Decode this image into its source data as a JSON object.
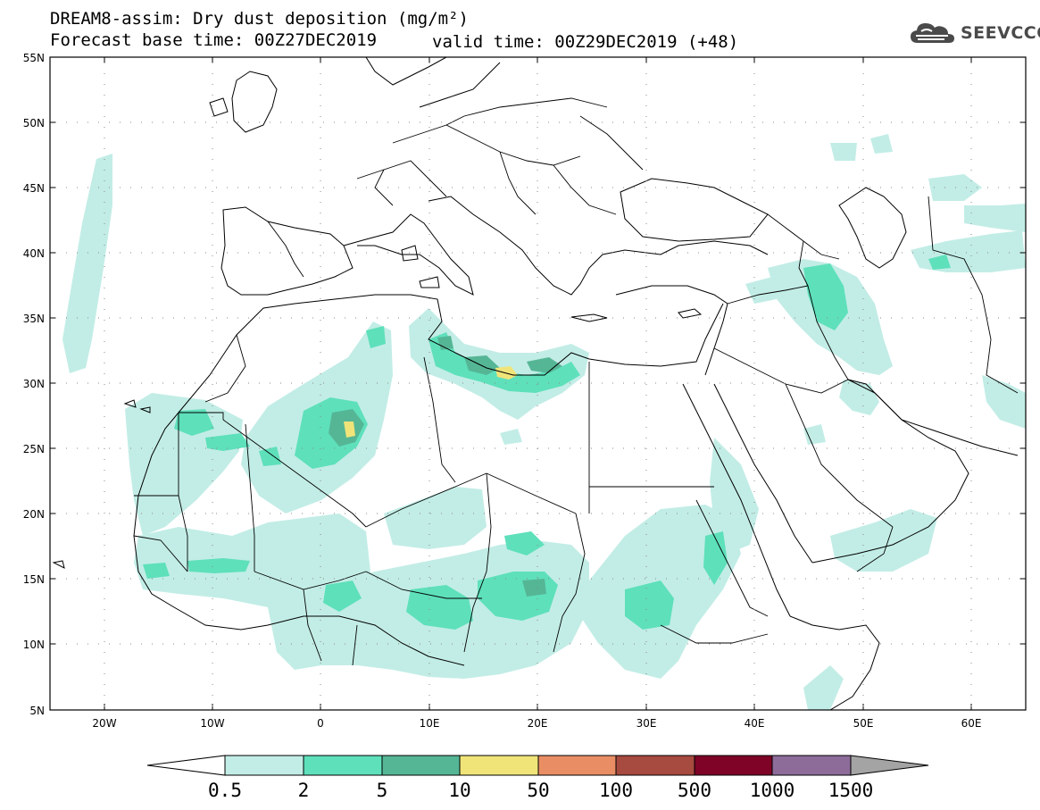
{
  "title": {
    "line1": "DREAM8-assim: Dry dust deposition (mg/m²)",
    "line2": "Forecast base time: 00Z27DEC2019",
    "valid": "valid time: 00Z29DEC2019 (+48)"
  },
  "logo": {
    "text": "SEEVCCC",
    "icon": "cloud-icon"
  },
  "map": {
    "projection": "lat-lon",
    "lon_range": [
      -25,
      65
    ],
    "lat_range": [
      5,
      55
    ],
    "lat_ticks": [
      "55N",
      "50N",
      "45N",
      "40N",
      "35N",
      "30N",
      "25N",
      "20N",
      "15N",
      "10N",
      "5N"
    ],
    "lon_ticks": [
      "20W",
      "10W",
      "0",
      "10E",
      "20E",
      "30E",
      "40E",
      "50E",
      "60E"
    ],
    "colors": {
      "c1": "#c2ede6",
      "c2": "#5ee0bb",
      "c3": "#55b695",
      "c4": "#f0e479",
      "c5": "#e98e64",
      "c6": "#a74a3f",
      "c7": "#7e0326",
      "c8": "#8d6c9a",
      "c9": "#a4a4a4"
    },
    "key_regions": [
      {
        "name": "libya-coast-max",
        "lat": 31,
        "lon": 17.5,
        "category": "10-50"
      },
      {
        "name": "algeria-max",
        "lat": 27,
        "lon": 2.5,
        "category": "10-50"
      }
    ]
  },
  "colorbar": {
    "labels": [
      "0.5",
      "2",
      "5",
      "10",
      "50",
      "100",
      "500",
      "1000",
      "1500"
    ],
    "colors": [
      "#c2ede6",
      "#5ee0bb",
      "#55b695",
      "#f0e479",
      "#e98e64",
      "#a74a3f",
      "#7e0326",
      "#8d6c9a",
      "#a4a4a4"
    ]
  }
}
